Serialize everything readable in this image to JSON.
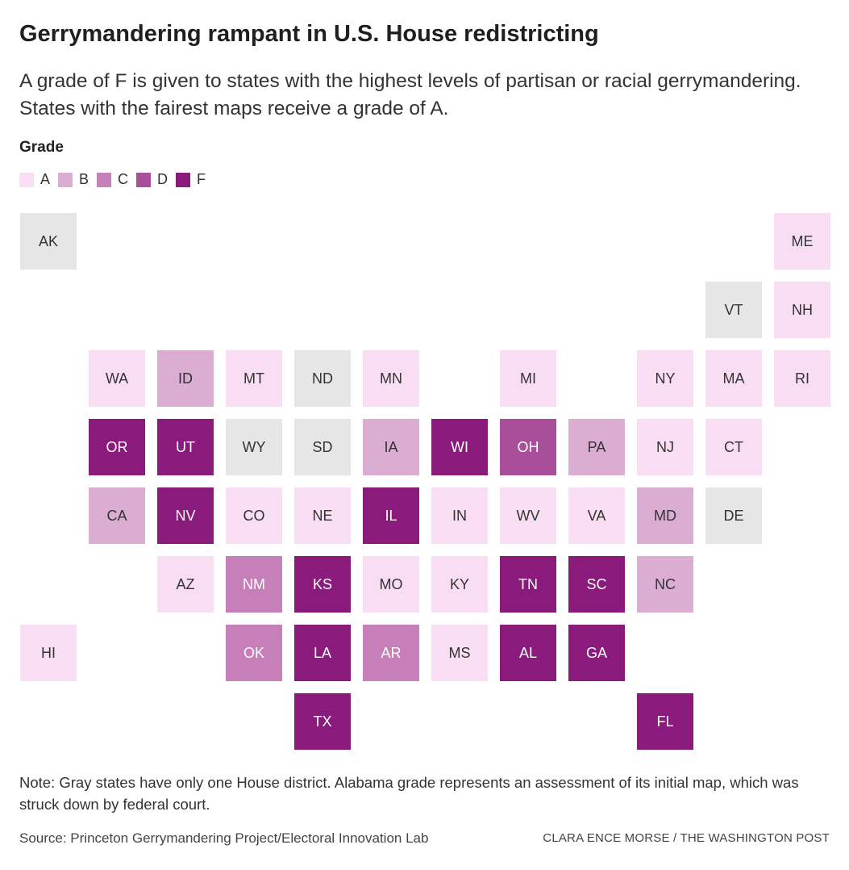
{
  "header": {
    "title": "Gerrymandering rampant in U.S. House redistricting",
    "subtitle": "A grade of F is given to states with the highest levels of partisan or racial gerrymandering. States with the fairest maps receive a grade of A."
  },
  "legend": {
    "title": "Grade",
    "items": [
      {
        "grade": "A",
        "color": "#f9ddf2"
      },
      {
        "grade": "B",
        "color": "#dcadd3"
      },
      {
        "grade": "C",
        "color": "#c67fb9"
      },
      {
        "grade": "D",
        "color": "#a94e98"
      },
      {
        "grade": "F",
        "color": "#8b1a7d"
      }
    ],
    "single_district_color": "#e6e6e6"
  },
  "states": [
    {
      "abbr": "AK",
      "grade": "single-district",
      "col": 0,
      "row": 0
    },
    {
      "abbr": "ME",
      "grade": "A",
      "col": 11,
      "row": 0
    },
    {
      "abbr": "VT",
      "grade": "single-district",
      "col": 10,
      "row": 1
    },
    {
      "abbr": "NH",
      "grade": "A",
      "col": 11,
      "row": 1
    },
    {
      "abbr": "WA",
      "grade": "A",
      "col": 1,
      "row": 2
    },
    {
      "abbr": "ID",
      "grade": "B",
      "col": 2,
      "row": 2
    },
    {
      "abbr": "MT",
      "grade": "A",
      "col": 3,
      "row": 2
    },
    {
      "abbr": "ND",
      "grade": "single-district",
      "col": 4,
      "row": 2
    },
    {
      "abbr": "MN",
      "grade": "A",
      "col": 5,
      "row": 2
    },
    {
      "abbr": "MI",
      "grade": "A",
      "col": 7,
      "row": 2
    },
    {
      "abbr": "NY",
      "grade": "A",
      "col": 9,
      "row": 2
    },
    {
      "abbr": "MA",
      "grade": "A",
      "col": 10,
      "row": 2
    },
    {
      "abbr": "RI",
      "grade": "A",
      "col": 11,
      "row": 2
    },
    {
      "abbr": "OR",
      "grade": "F",
      "col": 1,
      "row": 3
    },
    {
      "abbr": "UT",
      "grade": "F",
      "col": 2,
      "row": 3
    },
    {
      "abbr": "WY",
      "grade": "single-district",
      "col": 3,
      "row": 3
    },
    {
      "abbr": "SD",
      "grade": "single-district",
      "col": 4,
      "row": 3
    },
    {
      "abbr": "IA",
      "grade": "B",
      "col": 5,
      "row": 3
    },
    {
      "abbr": "WI",
      "grade": "F",
      "col": 6,
      "row": 3
    },
    {
      "abbr": "OH",
      "grade": "D",
      "col": 7,
      "row": 3
    },
    {
      "abbr": "PA",
      "grade": "B",
      "col": 8,
      "row": 3
    },
    {
      "abbr": "NJ",
      "grade": "A",
      "col": 9,
      "row": 3
    },
    {
      "abbr": "CT",
      "grade": "A",
      "col": 10,
      "row": 3
    },
    {
      "abbr": "CA",
      "grade": "B",
      "col": 1,
      "row": 4
    },
    {
      "abbr": "NV",
      "grade": "F",
      "col": 2,
      "row": 4
    },
    {
      "abbr": "CO",
      "grade": "A",
      "col": 3,
      "row": 4
    },
    {
      "abbr": "NE",
      "grade": "A",
      "col": 4,
      "row": 4
    },
    {
      "abbr": "IL",
      "grade": "F",
      "col": 5,
      "row": 4
    },
    {
      "abbr": "IN",
      "grade": "A",
      "col": 6,
      "row": 4
    },
    {
      "abbr": "WV",
      "grade": "A",
      "col": 7,
      "row": 4
    },
    {
      "abbr": "VA",
      "grade": "A",
      "col": 8,
      "row": 4
    },
    {
      "abbr": "MD",
      "grade": "B",
      "col": 9,
      "row": 4
    },
    {
      "abbr": "DE",
      "grade": "single-district",
      "col": 10,
      "row": 4
    },
    {
      "abbr": "AZ",
      "grade": "A",
      "col": 2,
      "row": 5
    },
    {
      "abbr": "NM",
      "grade": "C",
      "col": 3,
      "row": 5
    },
    {
      "abbr": "KS",
      "grade": "F",
      "col": 4,
      "row": 5
    },
    {
      "abbr": "MO",
      "grade": "A",
      "col": 5,
      "row": 5
    },
    {
      "abbr": "KY",
      "grade": "A",
      "col": 6,
      "row": 5
    },
    {
      "abbr": "TN",
      "grade": "F",
      "col": 7,
      "row": 5
    },
    {
      "abbr": "SC",
      "grade": "F",
      "col": 8,
      "row": 5
    },
    {
      "abbr": "NC",
      "grade": "B",
      "col": 9,
      "row": 5
    },
    {
      "abbr": "HI",
      "grade": "A",
      "col": 0,
      "row": 6
    },
    {
      "abbr": "OK",
      "grade": "C",
      "col": 3,
      "row": 6
    },
    {
      "abbr": "LA",
      "grade": "F",
      "col": 4,
      "row": 6
    },
    {
      "abbr": "AR",
      "grade": "C",
      "col": 5,
      "row": 6
    },
    {
      "abbr": "MS",
      "grade": "A",
      "col": 6,
      "row": 6
    },
    {
      "abbr": "AL",
      "grade": "F",
      "col": 7,
      "row": 6
    },
    {
      "abbr": "GA",
      "grade": "F",
      "col": 8,
      "row": 6
    },
    {
      "abbr": "TX",
      "grade": "F",
      "col": 4,
      "row": 7
    },
    {
      "abbr": "FL",
      "grade": "F",
      "col": 9,
      "row": 7
    }
  ],
  "footer": {
    "note": "Note: Gray states have only one House district. Alabama grade represents an assessment of its initial map, which was struck down by federal court.",
    "source": "Source: Princeton Gerrymandering Project/Electoral Innovation Lab",
    "credit": "CLARA ENCE MORSE / THE WASHINGTON POST"
  }
}
